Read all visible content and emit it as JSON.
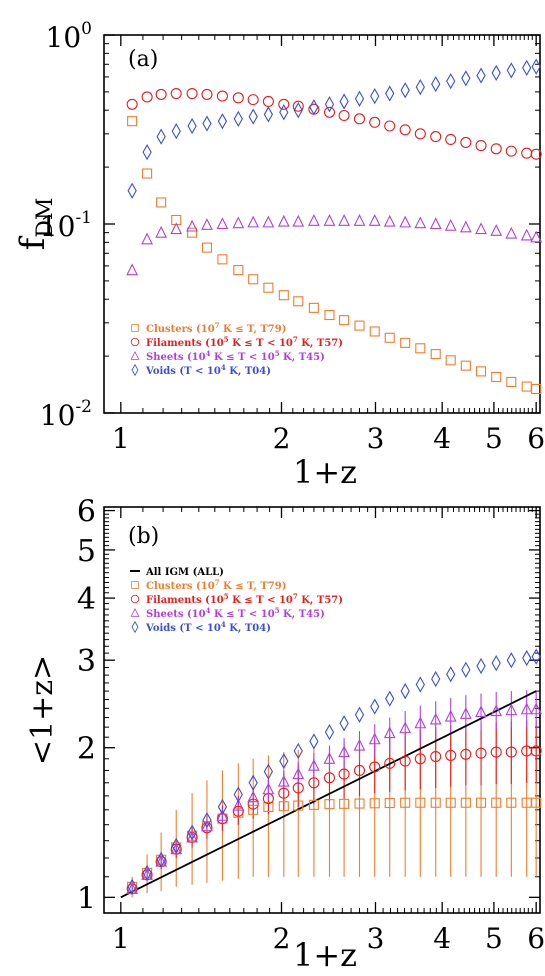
{
  "colors": {
    "clusters": "#f07d2f",
    "filaments": "#e81e1e",
    "sheets": "#b040e0",
    "voids": "#3a4fd8",
    "all": "#000000",
    "axis": "#000000"
  },
  "chart_data": [
    {
      "type": "scatter",
      "panel_label": "(a)",
      "xlabel": "1+z",
      "ylabel": "f",
      "ylabel_sub": "DM",
      "x_scale": "log",
      "y_scale": "log",
      "xlim": [
        0.93,
        6.1
      ],
      "ylim": [
        0.01,
        1.0
      ],
      "x_ticks": [
        1,
        2,
        3,
        4,
        5,
        6
      ],
      "x_tick_labels": [
        "1",
        "2",
        "3",
        "4",
        "5",
        "6"
      ],
      "y_ticks": [
        0.01,
        0.1,
        1.0
      ],
      "y_tick_labels": [
        [
          "10",
          "-2"
        ],
        [
          "10",
          "-1"
        ],
        [
          "10",
          "0"
        ]
      ],
      "grid": false,
      "legend_position": "bottom-left",
      "series": [
        {
          "key": "clusters",
          "marker": "square",
          "legend": [
            "Clusters (10",
            "7",
            " K ≤ T, T79)"
          ],
          "x": [
            1.05,
            1.12,
            1.19,
            1.27,
            1.36,
            1.45,
            1.55,
            1.66,
            1.77,
            1.89,
            2.02,
            2.15,
            2.3,
            2.46,
            2.62,
            2.8,
            2.99,
            3.19,
            3.41,
            3.64,
            3.89,
            4.15,
            4.43,
            4.73,
            5.05,
            5.39,
            5.76,
            6.0
          ],
          "y": [
            0.35,
            0.185,
            0.13,
            0.105,
            0.09,
            0.075,
            0.065,
            0.057,
            0.051,
            0.046,
            0.042,
            0.039,
            0.036,
            0.033,
            0.031,
            0.029,
            0.027,
            0.025,
            0.0235,
            0.022,
            0.0205,
            0.019,
            0.0178,
            0.0166,
            0.0155,
            0.0146,
            0.0138,
            0.0134
          ]
        },
        {
          "key": "filaments",
          "marker": "circle",
          "legend": [
            "Filaments (10",
            "5",
            " K ≤ T < 10",
            "7",
            " K, T57)"
          ],
          "x": [
            1.05,
            1.12,
            1.19,
            1.27,
            1.36,
            1.45,
            1.55,
            1.66,
            1.77,
            1.89,
            2.02,
            2.15,
            2.3,
            2.46,
            2.62,
            2.8,
            2.99,
            3.19,
            3.41,
            3.64,
            3.89,
            4.15,
            4.43,
            4.73,
            5.05,
            5.39,
            5.76,
            6.0
          ],
          "y": [
            0.43,
            0.47,
            0.485,
            0.49,
            0.49,
            0.485,
            0.475,
            0.465,
            0.455,
            0.445,
            0.43,
            0.42,
            0.405,
            0.39,
            0.375,
            0.36,
            0.345,
            0.33,
            0.315,
            0.3,
            0.29,
            0.28,
            0.27,
            0.26,
            0.25,
            0.243,
            0.237,
            0.234
          ]
        },
        {
          "key": "sheets",
          "marker": "triangle",
          "legend": [
            "Sheets (10",
            "4",
            " K ≤ T < 10",
            "5",
            " K, T45)"
          ],
          "x": [
            1.05,
            1.12,
            1.19,
            1.27,
            1.36,
            1.45,
            1.55,
            1.66,
            1.77,
            1.89,
            2.02,
            2.15,
            2.3,
            2.46,
            2.62,
            2.8,
            2.99,
            3.19,
            3.41,
            3.64,
            3.89,
            4.15,
            4.43,
            4.73,
            5.05,
            5.39,
            5.76,
            6.0
          ],
          "y": [
            0.057,
            0.083,
            0.09,
            0.094,
            0.097,
            0.099,
            0.1,
            0.101,
            0.102,
            0.102,
            0.103,
            0.103,
            0.104,
            0.104,
            0.104,
            0.104,
            0.104,
            0.103,
            0.102,
            0.101,
            0.1,
            0.098,
            0.096,
            0.094,
            0.092,
            0.089,
            0.087,
            0.085
          ]
        },
        {
          "key": "voids",
          "marker": "diamond",
          "legend": [
            "Voids (T < 10",
            "4",
            " K, T04)"
          ],
          "x": [
            1.05,
            1.12,
            1.19,
            1.27,
            1.36,
            1.45,
            1.55,
            1.66,
            1.77,
            1.89,
            2.02,
            2.15,
            2.3,
            2.46,
            2.62,
            2.8,
            2.99,
            3.19,
            3.41,
            3.64,
            3.89,
            4.15,
            4.43,
            4.73,
            5.05,
            5.39,
            5.76,
            6.0
          ],
          "y": [
            0.15,
            0.24,
            0.29,
            0.31,
            0.33,
            0.34,
            0.35,
            0.36,
            0.37,
            0.38,
            0.39,
            0.4,
            0.415,
            0.43,
            0.445,
            0.46,
            0.475,
            0.49,
            0.51,
            0.53,
            0.55,
            0.57,
            0.59,
            0.61,
            0.63,
            0.65,
            0.67,
            0.68
          ]
        }
      ]
    },
    {
      "type": "scatter",
      "panel_label": "(b)",
      "xlabel": "1+z",
      "ylabel": "<1+z>",
      "x_scale": "log",
      "y_scale": "log",
      "xlim": [
        0.93,
        6.1
      ],
      "ylim": [
        0.93,
        6.1
      ],
      "x_ticks": [
        1,
        2,
        3,
        4,
        5,
        6
      ],
      "x_tick_labels": [
        "1",
        "2",
        "3",
        "4",
        "5",
        "6"
      ],
      "y_ticks": [
        1,
        2,
        3,
        4,
        5,
        6
      ],
      "y_tick_labels": [
        "1",
        "2",
        "3",
        "4",
        "5",
        "6"
      ],
      "grid": false,
      "legend_position": "top-left",
      "all_line": {
        "key": "all",
        "legend": [
          "All IGM (ALL)"
        ],
        "x": [
          1.0,
          6.0
        ],
        "y": [
          1.0,
          2.6
        ]
      },
      "series": [
        {
          "key": "clusters",
          "marker": "square",
          "legend": [
            "Clusters (10",
            "7",
            " K ≤ T, T79)"
          ],
          "x": [
            1.05,
            1.12,
            1.19,
            1.27,
            1.36,
            1.45,
            1.55,
            1.66,
            1.77,
            1.89,
            2.02,
            2.15,
            2.3,
            2.46,
            2.62,
            2.8,
            2.99,
            3.19,
            3.41,
            3.64,
            3.89,
            4.15,
            4.43,
            4.73,
            5.05,
            5.39,
            5.76,
            6.0
          ],
          "y": [
            1.05,
            1.12,
            1.19,
            1.26,
            1.33,
            1.39,
            1.44,
            1.48,
            1.5,
            1.52,
            1.525,
            1.53,
            1.535,
            1.54,
            1.542,
            1.544,
            1.546,
            1.548,
            1.55,
            1.55,
            1.55,
            1.55,
            1.55,
            1.55,
            1.55,
            1.55,
            1.55,
            1.55
          ],
          "err_lo": [
            1.0,
            1.02,
            1.03,
            1.05,
            1.06,
            1.07,
            1.08,
            1.09,
            1.1,
            1.1,
            1.1,
            1.1,
            1.1,
            1.1,
            1.1,
            1.1,
            1.1,
            1.1,
            1.1,
            1.1,
            1.1,
            1.1,
            1.1,
            1.1,
            1.1,
            1.1,
            1.1,
            1.1
          ],
          "err_hi": [
            1.1,
            1.22,
            1.35,
            1.5,
            1.62,
            1.72,
            1.8,
            1.86,
            1.9,
            1.93,
            1.96,
            1.98,
            2.0,
            2.02,
            2.04,
            2.06,
            2.08,
            2.1,
            2.12,
            2.14,
            2.15,
            2.16,
            2.17,
            2.18,
            2.19,
            2.2,
            2.2,
            2.2
          ]
        },
        {
          "key": "filaments",
          "marker": "circle",
          "legend": [
            "Filaments (10",
            "5",
            " K ≤ T < 10",
            "7",
            " K, T57)"
          ],
          "x": [
            1.05,
            1.12,
            1.19,
            1.27,
            1.36,
            1.45,
            1.55,
            1.66,
            1.77,
            1.89,
            2.02,
            2.15,
            2.3,
            2.46,
            2.62,
            2.8,
            2.99,
            3.19,
            3.41,
            3.64,
            3.89,
            4.15,
            4.43,
            4.73,
            5.05,
            5.39,
            5.76,
            6.0
          ],
          "y": [
            1.04,
            1.11,
            1.18,
            1.25,
            1.32,
            1.38,
            1.44,
            1.49,
            1.54,
            1.58,
            1.62,
            1.66,
            1.7,
            1.74,
            1.77,
            1.8,
            1.83,
            1.86,
            1.88,
            1.9,
            1.92,
            1.93,
            1.94,
            1.95,
            1.96,
            1.96,
            1.97,
            1.97
          ],
          "err_lo": [
            1.02,
            1.08,
            1.14,
            1.2,
            1.26,
            1.31,
            1.36,
            1.4,
            1.44,
            1.47,
            1.5,
            1.52,
            1.54,
            1.56,
            1.58,
            1.6,
            1.62,
            1.63,
            1.64,
            1.65,
            1.66,
            1.67,
            1.68,
            1.68,
            1.69,
            1.69,
            1.7,
            1.7
          ],
          "err_hi": [
            1.06,
            1.14,
            1.22,
            1.3,
            1.38,
            1.46,
            1.53,
            1.6,
            1.66,
            1.72,
            1.78,
            1.84,
            1.9,
            1.96,
            2.0,
            2.04,
            2.08,
            2.12,
            2.15,
            2.18,
            2.2,
            2.22,
            2.23,
            2.24,
            2.25,
            2.26,
            2.27,
            2.27
          ]
        },
        {
          "key": "sheets",
          "marker": "triangle",
          "legend": [
            "Sheets (10",
            "4",
            " K ≤ T < 10",
            "5",
            " K, T45)"
          ],
          "x": [
            1.05,
            1.12,
            1.19,
            1.27,
            1.36,
            1.45,
            1.55,
            1.66,
            1.77,
            1.89,
            2.02,
            2.15,
            2.3,
            2.46,
            2.62,
            2.8,
            2.99,
            3.19,
            3.41,
            3.64,
            3.89,
            4.15,
            4.43,
            4.73,
            5.05,
            5.39,
            5.76,
            6.0
          ],
          "y": [
            1.04,
            1.11,
            1.18,
            1.25,
            1.32,
            1.39,
            1.46,
            1.53,
            1.59,
            1.65,
            1.71,
            1.77,
            1.84,
            1.9,
            1.96,
            2.02,
            2.08,
            2.14,
            2.19,
            2.24,
            2.28,
            2.31,
            2.34,
            2.36,
            2.37,
            2.38,
            2.39,
            2.39
          ],
          "err_lo": [
            1.03,
            1.09,
            1.16,
            1.22,
            1.29,
            1.35,
            1.41,
            1.47,
            1.52,
            1.57,
            1.62,
            1.67,
            1.72,
            1.77,
            1.82,
            1.87,
            1.92,
            1.96,
            2.0,
            2.04,
            2.08,
            2.11,
            2.14,
            2.16,
            2.18,
            2.19,
            2.2,
            2.2
          ],
          "err_hi": [
            1.05,
            1.13,
            1.2,
            1.28,
            1.35,
            1.43,
            1.51,
            1.59,
            1.66,
            1.73,
            1.8,
            1.87,
            1.95,
            2.02,
            2.09,
            2.16,
            2.23,
            2.3,
            2.37,
            2.43,
            2.48,
            2.52,
            2.55,
            2.57,
            2.59,
            2.6,
            2.61,
            2.61
          ]
        },
        {
          "key": "voids",
          "marker": "diamond",
          "legend": [
            "Voids (T < 10",
            "4",
            " K, T04)"
          ],
          "x": [
            1.05,
            1.12,
            1.19,
            1.27,
            1.36,
            1.45,
            1.55,
            1.66,
            1.77,
            1.89,
            2.02,
            2.15,
            2.3,
            2.46,
            2.62,
            2.8,
            2.99,
            3.19,
            3.41,
            3.64,
            3.89,
            4.15,
            4.43,
            4.73,
            5.05,
            5.39,
            5.76,
            6.0
          ],
          "y": [
            1.05,
            1.12,
            1.19,
            1.27,
            1.35,
            1.43,
            1.52,
            1.61,
            1.7,
            1.79,
            1.88,
            1.97,
            2.06,
            2.15,
            2.24,
            2.33,
            2.42,
            2.51,
            2.6,
            2.68,
            2.75,
            2.81,
            2.87,
            2.92,
            2.96,
            3.0,
            3.03,
            3.05
          ]
        }
      ]
    }
  ]
}
